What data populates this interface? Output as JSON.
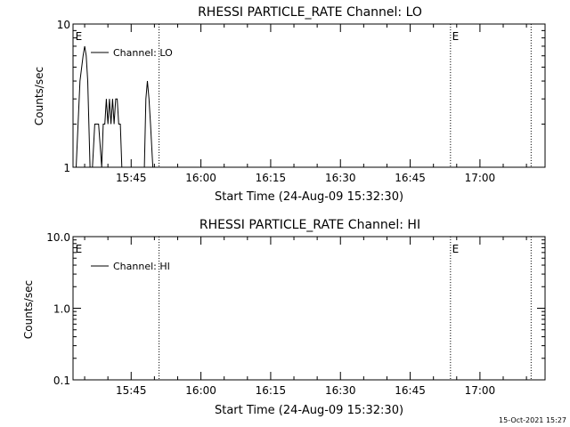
{
  "footer": {
    "timestamp": "15-Oct-2021 15:27"
  },
  "chart_data": [
    {
      "type": "line",
      "title": "RHESSI PARTICLE_RATE Channel: LO",
      "xlabel": "Start Time (24-Aug-09 15:32:30)",
      "ylabel": "Counts/sec",
      "xscale": "time",
      "xlim": [
        "15:32:30",
        "17:14:00"
      ],
      "xticks": [
        "15:45",
        "16:00",
        "16:15",
        "16:30",
        "16:45",
        "17:00"
      ],
      "yscale": "log",
      "ylim": [
        1,
        10
      ],
      "yticks": [
        "1",
        "10"
      ],
      "grid": false,
      "legend": {
        "position": "top-left",
        "entries": [
          "Channel: LO"
        ]
      },
      "annotations": [
        {
          "text": "E",
          "x": "15:33:00",
          "y": "top"
        },
        {
          "text": "E",
          "x": "16:54:00",
          "y": "top"
        }
      ],
      "vertical_lines": [
        "15:51:00",
        "16:53:40",
        "17:11:00"
      ],
      "series": [
        {
          "name": "Channel: LO",
          "x": [
            "15:33:10",
            "15:34:00",
            "15:34:40",
            "15:35:00",
            "15:35:20",
            "15:35:40",
            "15:36:10",
            "15:36:40",
            "15:37:10",
            "15:38:00",
            "15:38:40",
            "15:39:00",
            "15:39:20",
            "15:39:40",
            "15:40:00",
            "15:40:20",
            "15:40:40",
            "15:41:00",
            "15:41:20",
            "15:41:40",
            "15:42:00",
            "15:42:20",
            "15:42:40",
            "15:43:00",
            "15:43:20",
            "15:43:50",
            "15:47:50",
            "15:48:10",
            "15:48:30",
            "15:48:50",
            "15:49:10",
            "15:49:40"
          ],
          "y": [
            1,
            4,
            6,
            7,
            6,
            4,
            1,
            1,
            2,
            2,
            1,
            2,
            2,
            3,
            2,
            3,
            2,
            3,
            2,
            3,
            3,
            2,
            2,
            1,
            1,
            1,
            1,
            3,
            4,
            3,
            2,
            1
          ]
        }
      ]
    },
    {
      "type": "line",
      "title": "RHESSI PARTICLE_RATE Channel: HI",
      "xlabel": "Start Time (24-Aug-09 15:32:30)",
      "ylabel": "Counts/sec",
      "xscale": "time",
      "xlim": [
        "15:32:30",
        "17:14:00"
      ],
      "xticks": [
        "15:45",
        "16:00",
        "16:15",
        "16:30",
        "16:45",
        "17:00"
      ],
      "yscale": "log",
      "ylim": [
        0.1,
        10
      ],
      "yticks": [
        "0.1",
        "1.0",
        "10.0"
      ],
      "grid": false,
      "legend": {
        "position": "top-left",
        "entries": [
          "Channel: HI"
        ]
      },
      "annotations": [
        {
          "text": "E",
          "x": "15:33:00",
          "y": "top"
        },
        {
          "text": "E",
          "x": "16:54:00",
          "y": "top"
        }
      ],
      "vertical_lines": [
        "15:51:00",
        "16:53:40",
        "17:11:00"
      ],
      "series": [
        {
          "name": "Channel: HI",
          "x": [],
          "y": []
        }
      ]
    }
  ]
}
